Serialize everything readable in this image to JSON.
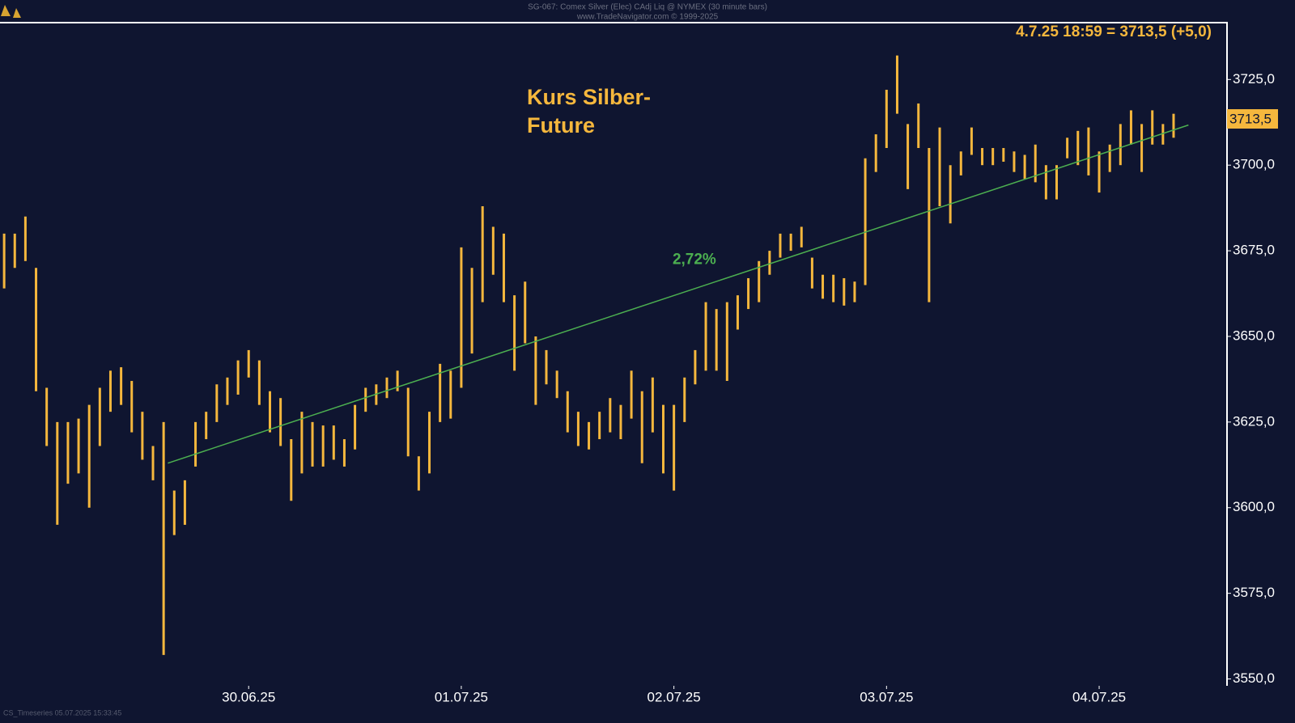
{
  "chart_data": {
    "type": "hl-bar",
    "header": "SG-067: Comex Silver (Elec) CAdj Liq @ NYMEX (30 minute bars)",
    "source": "www.TradeNavigator.com © 1999-2025",
    "status": "4.7.25 18:59 = 3713,5 (+5,0)",
    "annotation": [
      "Kurs Silber-",
      "Future"
    ],
    "footer": "CS_Timeseries   05.07.2025 15:33:45",
    "color": "#f5b73d",
    "background": "#0f1530",
    "x": [
      0,
      1,
      2,
      3,
      4,
      5,
      6,
      7,
      8,
      9,
      10,
      11,
      12,
      13,
      14,
      15,
      16,
      17,
      18,
      19,
      20,
      21,
      22,
      23,
      24,
      25,
      26,
      27,
      28,
      29,
      30,
      31,
      32,
      33,
      34,
      35,
      36,
      37,
      38,
      39,
      40,
      41,
      42,
      43,
      44,
      45,
      46,
      47,
      48,
      49,
      50,
      51,
      52,
      53,
      54,
      55,
      56,
      57,
      58,
      59,
      60,
      61,
      62,
      63,
      64,
      65,
      66,
      67,
      68,
      69,
      70,
      71,
      72,
      73,
      74,
      75,
      76,
      77,
      78,
      79,
      80,
      81,
      82,
      83,
      84,
      85,
      86,
      87,
      88,
      89,
      90,
      91,
      92,
      93,
      94,
      95,
      96,
      97,
      98,
      99,
      100,
      101,
      102,
      103,
      104,
      105,
      106,
      107,
      108,
      109,
      110
    ],
    "high": [
      3680,
      3680,
      3685,
      3670,
      3635,
      3625,
      3625,
      3626,
      3630,
      3635,
      3640,
      3641,
      3637,
      3628,
      3618,
      3625,
      3605,
      3608,
      3625,
      3628,
      3636,
      3638,
      3643,
      3646,
      3643,
      3634,
      3632,
      3620,
      3628,
      3625,
      3624,
      3624,
      3620,
      3630,
      3635,
      3636,
      3638,
      3640,
      3635,
      3615,
      3628,
      3642,
      3640,
      3676,
      3670,
      3688,
      3682,
      3680,
      3662,
      3666,
      3650,
      3646,
      3640,
      3634,
      3628,
      3625,
      3628,
      3632,
      3630,
      3640,
      3634,
      3638,
      3630,
      3630,
      3638,
      3646,
      3660,
      3658,
      3660,
      3662,
      3667,
      3672,
      3675,
      3680,
      3680,
      3682,
      3673,
      3668,
      3668,
      3667,
      3666,
      3702,
      3709,
      3722,
      3732,
      3712,
      3718,
      3705,
      3711,
      3700,
      3704,
      3711,
      3705,
      3705,
      3705,
      3704,
      3703,
      3706,
      3700,
      3700,
      3708,
      3710,
      3711,
      3704,
      3706,
      3712,
      3716,
      3712,
      3716,
      3712,
      3715
    ],
    "low": [
      3664,
      3670,
      3672,
      3634,
      3618,
      3595,
      3607,
      3610,
      3600,
      3618,
      3628,
      3630,
      3622,
      3614,
      3608,
      3557,
      3592,
      3595,
      3612,
      3620,
      3625,
      3630,
      3633,
      3638,
      3630,
      3622,
      3618,
      3602,
      3610,
      3612,
      3612,
      3614,
      3612,
      3617,
      3628,
      3630,
      3632,
      3634,
      3615,
      3605,
      3610,
      3625,
      3626,
      3635,
      3645,
      3660,
      3668,
      3660,
      3640,
      3648,
      3630,
      3636,
      3632,
      3622,
      3618,
      3617,
      3620,
      3622,
      3620,
      3626,
      3613,
      3622,
      3610,
      3605,
      3625,
      3636,
      3640,
      3640,
      3637,
      3652,
      3658,
      3660,
      3668,
      3673,
      3675,
      3676,
      3664,
      3661,
      3660,
      3659,
      3660,
      3665,
      3698,
      3705,
      3715,
      3693,
      3705,
      3660,
      3688,
      3683,
      3697,
      3703,
      3700,
      3700,
      3701,
      3698,
      3696,
      3695,
      3690,
      3690,
      3702,
      3700,
      3697,
      3692,
      3698,
      3700,
      3706,
      3698,
      3706,
      3706,
      3708
    ],
    "xlim": [
      -0.39,
      114.95
    ],
    "xticks": [
      {
        "value": 23,
        "label": "30.06.25"
      },
      {
        "value": 43,
        "label": "01.07.25"
      },
      {
        "value": 63,
        "label": "02.07.25"
      },
      {
        "value": 83,
        "label": "03.07.25"
      },
      {
        "value": 103,
        "label": "04.07.25"
      }
    ],
    "ylim": [
      3548,
      3741.6
    ],
    "yticks": [
      {
        "value": 3550,
        "label": "3550,0"
      },
      {
        "value": 3575,
        "label": "3575,0"
      },
      {
        "value": 3600,
        "label": "3600,0"
      },
      {
        "value": 3625,
        "label": "3625,0"
      },
      {
        "value": 3650,
        "label": "3650,0"
      },
      {
        "value": 3675,
        "label": "3675,0"
      },
      {
        "value": 3700,
        "label": "3700,0"
      },
      {
        "value": 3725,
        "label": "3725,0"
      }
    ],
    "last_price": {
      "value": 3713.5,
      "label": "3713,5"
    },
    "trendline": {
      "x": [
        15.4,
        111.4
      ],
      "y": [
        3613,
        3711.7
      ],
      "label": "2,72%",
      "color": "#4caf50"
    }
  }
}
